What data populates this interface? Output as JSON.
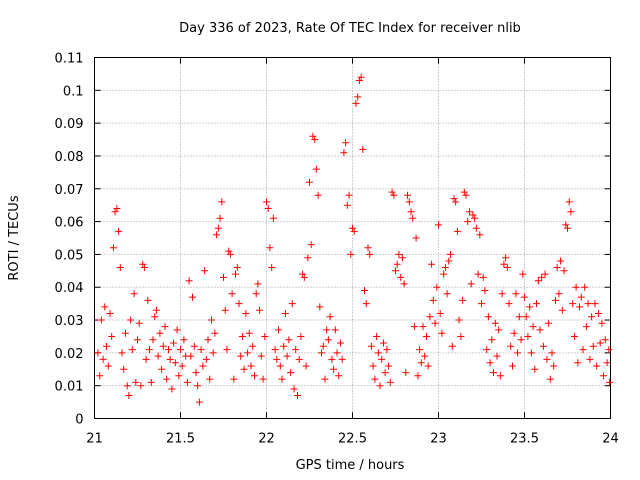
{
  "chart_data": {
    "type": "scatter",
    "title": "Day 336 of 2023, Rate Of TEC Index for receiver nlib",
    "xlabel": "GPS time / hours",
    "ylabel": "ROTI / TECUs",
    "xlim": [
      21,
      24
    ],
    "ylim": [
      0,
      0.11
    ],
    "x_ticks": [
      21,
      21.5,
      22,
      22.5,
      23,
      23.5,
      24
    ],
    "x_tick_labels": [
      "21",
      "21.5",
      "22",
      "22.5",
      "23",
      "23.5",
      "24"
    ],
    "y_ticks": [
      0,
      0.01,
      0.02,
      0.03,
      0.04,
      0.05,
      0.06,
      0.07,
      0.08,
      0.09,
      0.1,
      0.11
    ],
    "y_tick_labels": [
      "0",
      "0.01",
      "0.02",
      "0.03",
      "0.04",
      "0.05",
      "0.06",
      "0.07",
      "0.08",
      "0.09",
      "0.1",
      "0.11"
    ],
    "grid": true,
    "marker": "+",
    "color": "#ff0000",
    "series": [
      {
        "name": "ROTI",
        "points": [
          [
            21.02,
            0.02
          ],
          [
            21.03,
            0.013
          ],
          [
            21.04,
            0.03
          ],
          [
            21.05,
            0.018
          ],
          [
            21.06,
            0.034
          ],
          [
            21.07,
            0.022
          ],
          [
            21.08,
            0.016
          ],
          [
            21.09,
            0.032
          ],
          [
            21.1,
            0.025
          ],
          [
            21.11,
            0.052
          ],
          [
            21.12,
            0.063
          ],
          [
            21.13,
            0.064
          ],
          [
            21.14,
            0.057
          ],
          [
            21.15,
            0.046
          ],
          [
            21.16,
            0.02
          ],
          [
            21.17,
            0.015
          ],
          [
            21.18,
            0.026
          ],
          [
            21.19,
            0.01
          ],
          [
            21.2,
            0.007
          ],
          [
            21.21,
            0.03
          ],
          [
            21.22,
            0.021
          ],
          [
            21.23,
            0.038
          ],
          [
            21.24,
            0.011
          ],
          [
            21.25,
            0.024
          ],
          [
            21.26,
            0.029
          ],
          [
            21.27,
            0.01
          ],
          [
            21.28,
            0.047
          ],
          [
            21.29,
            0.046
          ],
          [
            21.3,
            0.018
          ],
          [
            21.31,
            0.036
          ],
          [
            21.32,
            0.021
          ],
          [
            21.33,
            0.011
          ],
          [
            21.34,
            0.024
          ],
          [
            21.35,
            0.031
          ],
          [
            21.36,
            0.033
          ],
          [
            21.37,
            0.019
          ],
          [
            21.38,
            0.026
          ],
          [
            21.39,
            0.015
          ],
          [
            21.4,
            0.022
          ],
          [
            21.41,
            0.028
          ],
          [
            21.42,
            0.012
          ],
          [
            21.43,
            0.021
          ],
          [
            21.44,
            0.018
          ],
          [
            21.45,
            0.009
          ],
          [
            21.46,
            0.023
          ],
          [
            21.47,
            0.017
          ],
          [
            21.48,
            0.027
          ],
          [
            21.49,
            0.013
          ],
          [
            21.5,
            0.021
          ],
          [
            21.51,
            0.016
          ],
          [
            21.52,
            0.024
          ],
          [
            21.53,
            0.019
          ],
          [
            21.54,
            0.011
          ],
          [
            21.55,
            0.042
          ],
          [
            21.56,
            0.019
          ],
          [
            21.57,
            0.037
          ],
          [
            21.58,
            0.022
          ],
          [
            21.59,
            0.014
          ],
          [
            21.6,
            0.01
          ],
          [
            21.61,
            0.005
          ],
          [
            21.62,
            0.021
          ],
          [
            21.63,
            0.016
          ],
          [
            21.64,
            0.045
          ],
          [
            21.65,
            0.018
          ],
          [
            21.66,
            0.024
          ],
          [
            21.67,
            0.012
          ],
          [
            21.68,
            0.03
          ],
          [
            21.69,
            0.02
          ],
          [
            21.7,
            0.026
          ],
          [
            21.71,
            0.056
          ],
          [
            21.72,
            0.058
          ],
          [
            21.73,
            0.061
          ],
          [
            21.74,
            0.066
          ],
          [
            21.75,
            0.043
          ],
          [
            21.76,
            0.033
          ],
          [
            21.77,
            0.021
          ],
          [
            21.78,
            0.051
          ],
          [
            21.79,
            0.05
          ],
          [
            21.8,
            0.038
          ],
          [
            21.81,
            0.012
          ],
          [
            21.82,
            0.044
          ],
          [
            21.83,
            0.046
          ],
          [
            21.84,
            0.035
          ],
          [
            21.85,
            0.019
          ],
          [
            21.86,
            0.025
          ],
          [
            21.87,
            0.015
          ],
          [
            21.88,
            0.032
          ],
          [
            21.89,
            0.02
          ],
          [
            21.9,
            0.026
          ],
          [
            21.91,
            0.016
          ],
          [
            21.92,
            0.022
          ],
          [
            21.93,
            0.013
          ],
          [
            21.94,
            0.038
          ],
          [
            21.95,
            0.041
          ],
          [
            21.96,
            0.033
          ],
          [
            21.97,
            0.019
          ],
          [
            21.98,
            0.012
          ],
          [
            21.99,
            0.025
          ],
          [
            22.0,
            0.066
          ],
          [
            22.01,
            0.064
          ],
          [
            22.02,
            0.052
          ],
          [
            22.03,
            0.046
          ],
          [
            22.04,
            0.061
          ],
          [
            22.05,
            0.021
          ],
          [
            22.06,
            0.018
          ],
          [
            22.07,
            0.027
          ],
          [
            22.08,
            0.016
          ],
          [
            22.09,
            0.012
          ],
          [
            22.1,
            0.022
          ],
          [
            22.11,
            0.032
          ],
          [
            22.12,
            0.019
          ],
          [
            22.13,
            0.024
          ],
          [
            22.14,
            0.014
          ],
          [
            22.15,
            0.035
          ],
          [
            22.16,
            0.009
          ],
          [
            22.17,
            0.021
          ],
          [
            22.18,
            0.007
          ],
          [
            22.19,
            0.018
          ],
          [
            22.2,
            0.025
          ],
          [
            22.21,
            0.044
          ],
          [
            22.22,
            0.043
          ],
          [
            22.23,
            0.016
          ],
          [
            22.24,
            0.049
          ],
          [
            22.25,
            0.072
          ],
          [
            22.26,
            0.053
          ],
          [
            22.27,
            0.086
          ],
          [
            22.28,
            0.085
          ],
          [
            22.29,
            0.076
          ],
          [
            22.3,
            0.068
          ],
          [
            22.31,
            0.034
          ],
          [
            22.32,
            0.02
          ],
          [
            22.33,
            0.022
          ],
          [
            22.34,
            0.012
          ],
          [
            22.35,
            0.027
          ],
          [
            22.36,
            0.024
          ],
          [
            22.37,
            0.031
          ],
          [
            22.38,
            0.018
          ],
          [
            22.39,
            0.015
          ],
          [
            22.4,
            0.027
          ],
          [
            22.41,
            0.02
          ],
          [
            22.42,
            0.013
          ],
          [
            22.43,
            0.023
          ],
          [
            22.44,
            0.018
          ],
          [
            22.45,
            0.081
          ],
          [
            22.46,
            0.084
          ],
          [
            22.47,
            0.065
          ],
          [
            22.48,
            0.068
          ],
          [
            22.49,
            0.05
          ],
          [
            22.5,
            0.058
          ],
          [
            22.51,
            0.057
          ],
          [
            22.52,
            0.096
          ],
          [
            22.53,
            0.098
          ],
          [
            22.54,
            0.103
          ],
          [
            22.55,
            0.104
          ],
          [
            22.56,
            0.082
          ],
          [
            22.57,
            0.039
          ],
          [
            22.58,
            0.035
          ],
          [
            22.59,
            0.052
          ],
          [
            22.6,
            0.05
          ],
          [
            22.61,
            0.022
          ],
          [
            22.62,
            0.016
          ],
          [
            22.63,
            0.012
          ],
          [
            22.64,
            0.025
          ],
          [
            22.65,
            0.02
          ],
          [
            22.66,
            0.01
          ],
          [
            22.67,
            0.018
          ],
          [
            22.68,
            0.023
          ],
          [
            22.69,
            0.014
          ],
          [
            22.7,
            0.021
          ],
          [
            22.71,
            0.016
          ],
          [
            22.72,
            0.011
          ],
          [
            22.73,
            0.069
          ],
          [
            22.74,
            0.068
          ],
          [
            22.75,
            0.045
          ],
          [
            22.76,
            0.047
          ],
          [
            22.77,
            0.05
          ],
          [
            22.78,
            0.043
          ],
          [
            22.79,
            0.049
          ],
          [
            22.8,
            0.041
          ],
          [
            22.81,
            0.014
          ],
          [
            22.82,
            0.068
          ],
          [
            22.83,
            0.066
          ],
          [
            22.84,
            0.063
          ],
          [
            22.85,
            0.061
          ],
          [
            22.86,
            0.028
          ],
          [
            22.87,
            0.055
          ],
          [
            22.88,
            0.013
          ],
          [
            22.89,
            0.021
          ],
          [
            22.9,
            0.017
          ],
          [
            22.91,
            0.028
          ],
          [
            22.92,
            0.019
          ],
          [
            22.93,
            0.025
          ],
          [
            22.94,
            0.016
          ],
          [
            22.95,
            0.031
          ],
          [
            22.96,
            0.047
          ],
          [
            22.97,
            0.036
          ],
          [
            22.98,
            0.029
          ],
          [
            22.99,
            0.04
          ],
          [
            23.0,
            0.059
          ],
          [
            23.01,
            0.032
          ],
          [
            23.02,
            0.026
          ],
          [
            23.03,
            0.044
          ],
          [
            23.04,
            0.046
          ],
          [
            23.05,
            0.038
          ],
          [
            23.06,
            0.048
          ],
          [
            23.07,
            0.05
          ],
          [
            23.08,
            0.022
          ],
          [
            23.09,
            0.067
          ],
          [
            23.1,
            0.066
          ],
          [
            23.11,
            0.057
          ],
          [
            23.12,
            0.03
          ],
          [
            23.13,
            0.025
          ],
          [
            23.14,
            0.036
          ],
          [
            23.15,
            0.069
          ],
          [
            23.16,
            0.068
          ],
          [
            23.17,
            0.06
          ],
          [
            23.18,
            0.063
          ],
          [
            23.19,
            0.041
          ],
          [
            23.2,
            0.062
          ],
          [
            23.21,
            0.061
          ],
          [
            23.22,
            0.058
          ],
          [
            23.23,
            0.044
          ],
          [
            23.24,
            0.056
          ],
          [
            23.25,
            0.035
          ],
          [
            23.26,
            0.043
          ],
          [
            23.27,
            0.039
          ],
          [
            23.28,
            0.021
          ],
          [
            23.29,
            0.031
          ],
          [
            23.3,
            0.017
          ],
          [
            23.31,
            0.024
          ],
          [
            23.32,
            0.014
          ],
          [
            23.33,
            0.029
          ],
          [
            23.34,
            0.019
          ],
          [
            23.35,
            0.027
          ],
          [
            23.36,
            0.013
          ],
          [
            23.37,
            0.038
          ],
          [
            23.38,
            0.047
          ],
          [
            23.39,
            0.049
          ],
          [
            23.4,
            0.046
          ],
          [
            23.41,
            0.035
          ],
          [
            23.42,
            0.022
          ],
          [
            23.43,
            0.016
          ],
          [
            23.44,
            0.026
          ],
          [
            23.45,
            0.038
          ],
          [
            23.46,
            0.02
          ],
          [
            23.47,
            0.031
          ],
          [
            23.48,
            0.024
          ],
          [
            23.49,
            0.044
          ],
          [
            23.5,
            0.037
          ],
          [
            23.51,
            0.031
          ],
          [
            23.52,
            0.025
          ],
          [
            23.53,
            0.034
          ],
          [
            23.54,
            0.02
          ],
          [
            23.55,
            0.028
          ],
          [
            23.56,
            0.015
          ],
          [
            23.57,
            0.035
          ],
          [
            23.58,
            0.042
          ],
          [
            23.59,
            0.027
          ],
          [
            23.6,
            0.043
          ],
          [
            23.61,
            0.022
          ],
          [
            23.62,
            0.044
          ],
          [
            23.63,
            0.018
          ],
          [
            23.64,
            0.029
          ],
          [
            23.65,
            0.012
          ],
          [
            23.66,
            0.02
          ],
          [
            23.67,
            0.016
          ],
          [
            23.68,
            0.036
          ],
          [
            23.69,
            0.046
          ],
          [
            23.7,
            0.038
          ],
          [
            23.71,
            0.048
          ],
          [
            23.72,
            0.033
          ],
          [
            23.73,
            0.045
          ],
          [
            23.74,
            0.059
          ],
          [
            23.75,
            0.058
          ],
          [
            23.76,
            0.066
          ],
          [
            23.77,
            0.063
          ],
          [
            23.78,
            0.035
          ],
          [
            23.79,
            0.025
          ],
          [
            23.8,
            0.04
          ],
          [
            23.81,
            0.017
          ],
          [
            23.82,
            0.034
          ],
          [
            23.83,
            0.037
          ],
          [
            23.84,
            0.021
          ],
          [
            23.85,
            0.04
          ],
          [
            23.86,
            0.028
          ],
          [
            23.87,
            0.035
          ],
          [
            23.88,
            0.018
          ],
          [
            23.89,
            0.031
          ],
          [
            23.9,
            0.022
          ],
          [
            23.91,
            0.035
          ],
          [
            23.92,
            0.016
          ],
          [
            23.93,
            0.032
          ],
          [
            23.94,
            0.023
          ],
          [
            23.95,
            0.029
          ],
          [
            23.96,
            0.013
          ],
          [
            23.97,
            0.024
          ],
          [
            23.98,
            0.017
          ],
          [
            23.99,
            0.021
          ],
          [
            23.995,
            0.011
          ]
        ]
      }
    ]
  }
}
